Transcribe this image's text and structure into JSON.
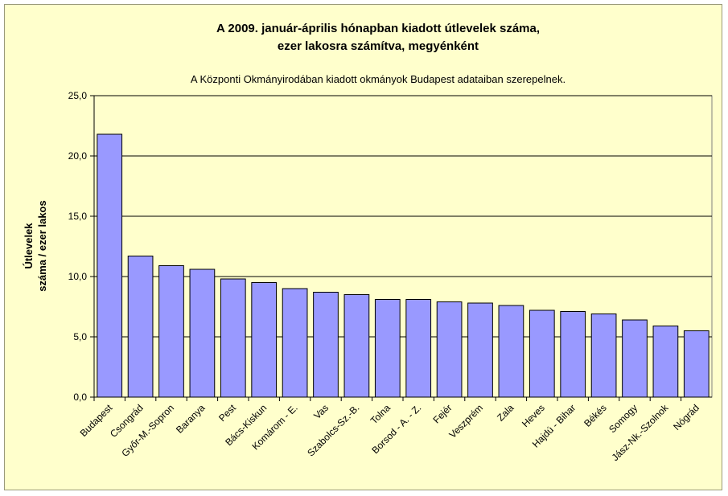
{
  "chart_data": {
    "type": "bar",
    "title_line1": "A 2009. január-április hónapban kiadott útlevelek száma,",
    "title_line2": "ezer lakosra számítva, megyénként",
    "subtitle": "A Központi Okmányirodában kiadott okmányok Budapest adataiban szerepelnek.",
    "ylabel_line1": "Útlevelek",
    "ylabel_line2": "száma / ezer lakos",
    "xlabel": "",
    "ylim": [
      0,
      25
    ],
    "yticks": [
      "0,0",
      "5,0",
      "10,0",
      "15,0",
      "20,0",
      "25,0"
    ],
    "grid": true,
    "legend": "none",
    "categories": [
      "Budapest",
      "Csongrád",
      "Győr-M.-Sopron",
      "Baranya",
      "Pest",
      "Bács-Kiskun",
      "Komárom - E.",
      "Vas",
      "Szabolcs-Sz.-B.",
      "Tolna",
      "Borsod - A. - Z.",
      "Fejér",
      "Veszprém",
      "Zala",
      "Heves",
      "Hajdú - Bihar",
      "Békés",
      "Somogy",
      "Jász-Nk.-Szolnok",
      "Nógrád"
    ],
    "values": [
      21.8,
      11.7,
      10.9,
      10.6,
      9.8,
      9.5,
      9.0,
      8.7,
      8.5,
      8.1,
      8.1,
      7.9,
      7.8,
      7.6,
      7.2,
      7.1,
      6.9,
      6.4,
      5.9,
      5.5
    ],
    "colors": {
      "bar": "#9999ff",
      "bar_stroke": "#000000",
      "plot_bg": "#ffffcc",
      "frame_bg": "#ffffcc",
      "grid": "#000000"
    }
  }
}
